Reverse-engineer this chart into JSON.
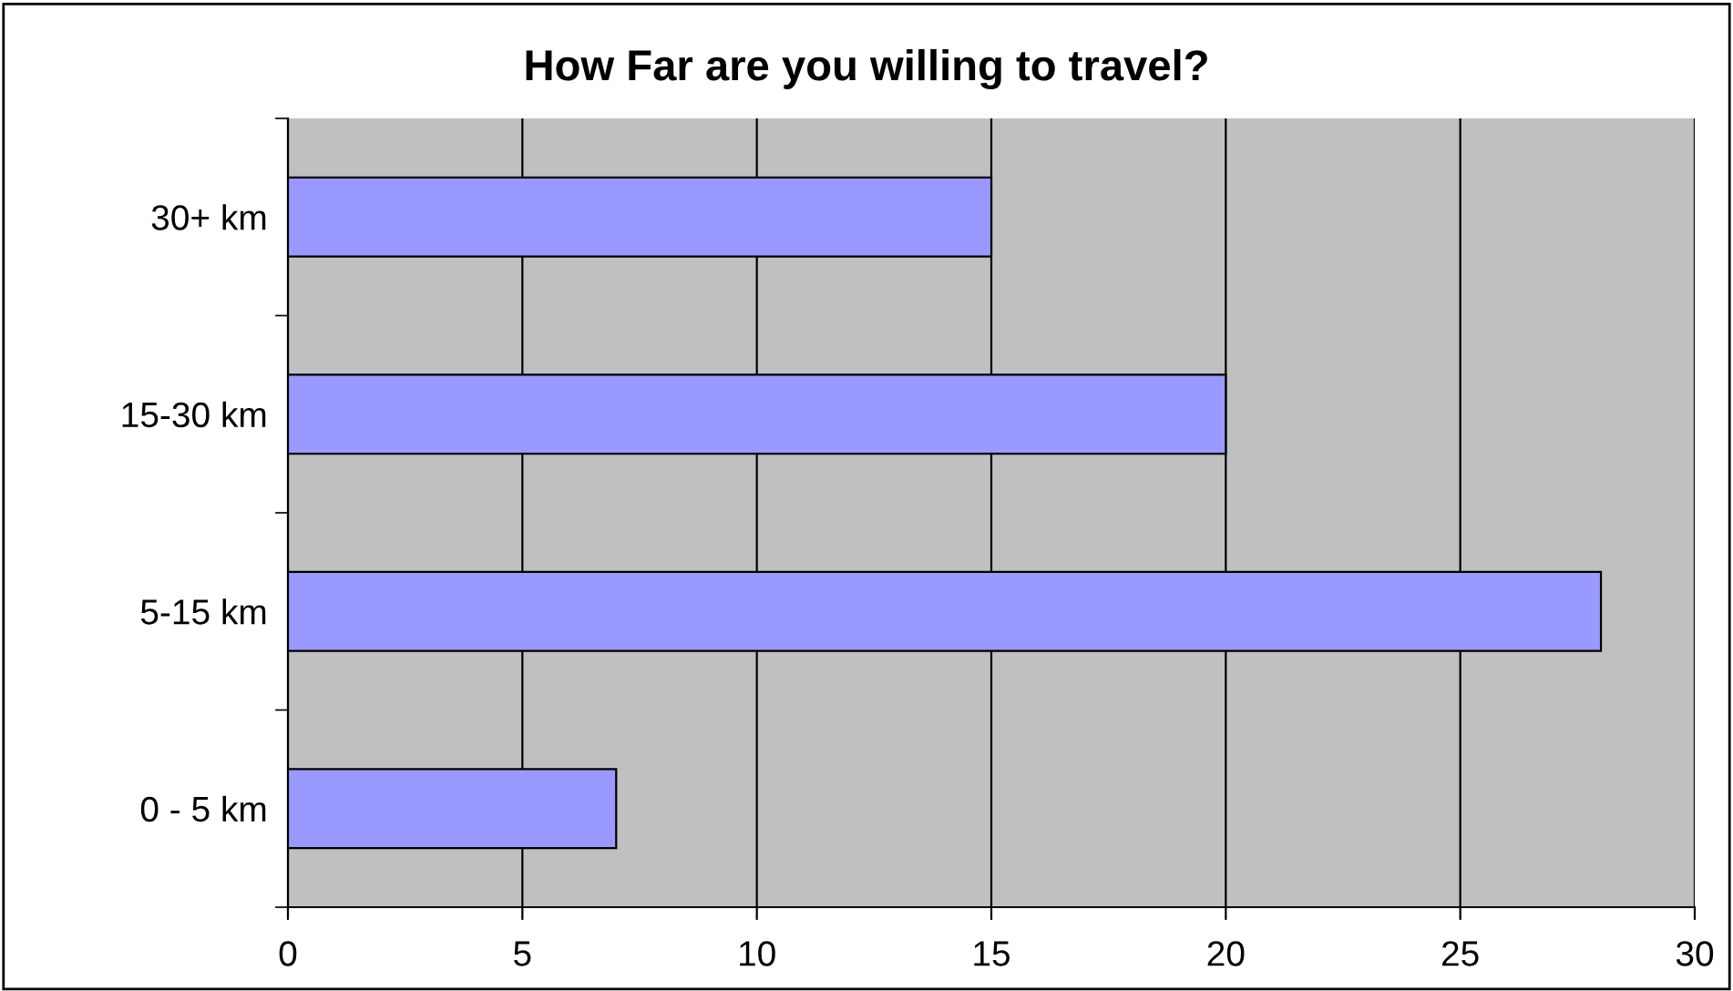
{
  "chart_data": {
    "type": "bar",
    "orientation": "horizontal",
    "title": "How Far are you willing to travel?",
    "categories": [
      "30+ km",
      "15-30 km",
      "5-15 km",
      "0 - 5 km"
    ],
    "values": [
      15,
      20,
      28,
      7
    ],
    "color": "#9999ff",
    "xlim": [
      0,
      30
    ],
    "xticks": [
      0,
      5,
      10,
      15,
      20,
      25,
      30
    ],
    "grid": "x",
    "legend": false
  }
}
